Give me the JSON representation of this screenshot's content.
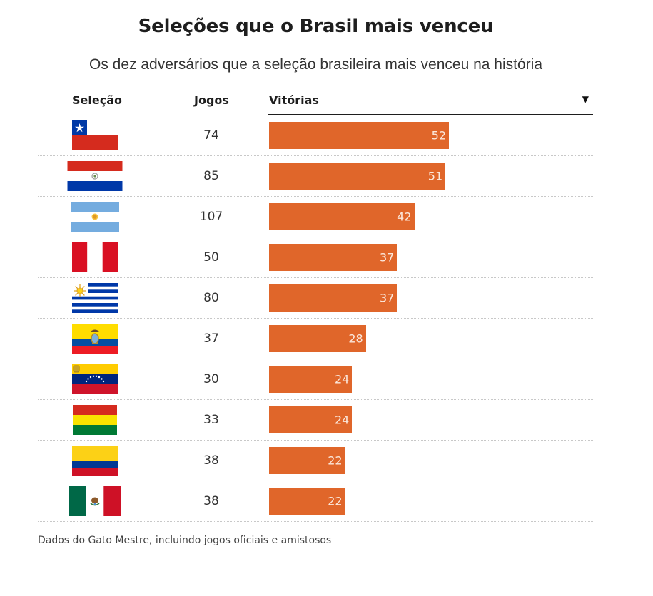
{
  "header": {
    "title": "Seleções que o Brasil mais venceu",
    "subtitle": "Os dez adversários que a seleção brasileira mais venceu na história"
  },
  "table": {
    "columns": [
      "Seleção",
      "Jogos",
      "Vitórias"
    ],
    "sort_indicator": "▼",
    "sort_column": "Vitórias",
    "sort_direction": "descending"
  },
  "colors": {
    "bar": "#e0662a",
    "bar_label": "#fbe8dc"
  },
  "chart_data": {
    "type": "bar",
    "orientation": "horizontal",
    "title": "Seleções que o Brasil mais venceu",
    "subtitle": "Os dez adversários que a seleção brasileira mais venceu na história",
    "categories": [
      "Chile",
      "Paraguai",
      "Argentina",
      "Peru",
      "Uruguai",
      "Equador",
      "Venezuela",
      "Bolívia",
      "Colômbia",
      "México"
    ],
    "flag_icons": [
      "chile-flag",
      "paraguay-flag",
      "argentina-flag",
      "peru-flag",
      "uruguay-flag",
      "ecuador-flag",
      "venezuela-flag",
      "bolivia-flag",
      "colombia-flag",
      "mexico-flag"
    ],
    "jogos": [
      74,
      85,
      107,
      50,
      80,
      37,
      30,
      33,
      38,
      38
    ],
    "values": [
      52,
      51,
      42,
      37,
      37,
      28,
      24,
      24,
      22,
      22
    ],
    "value_label": "Vitórias",
    "xlim": [
      0,
      52
    ]
  },
  "footer": {
    "note": "Dados do Gato Mestre, incluindo jogos oficiais e amistosos"
  }
}
